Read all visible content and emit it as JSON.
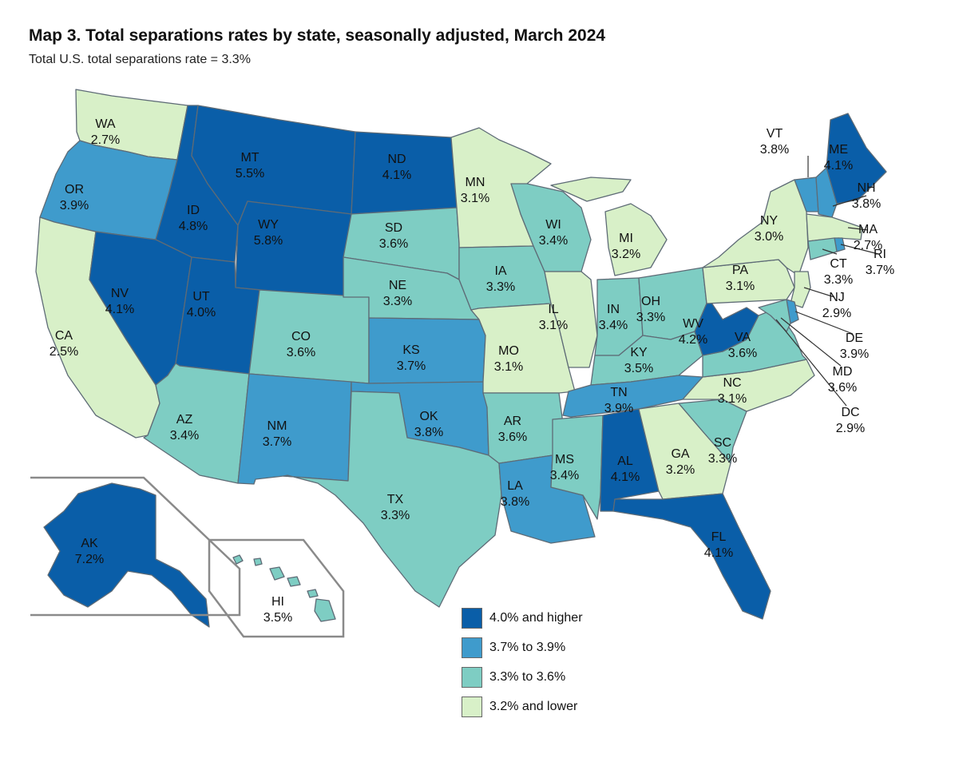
{
  "title": "Map 3. Total separations rates by state, seasonally adjusted, March 2024",
  "subtitle": "Total U.S. total separations rate = 3.3%",
  "colors": {
    "high": "#0a5ea8",
    "mid_high": "#3f9bcc",
    "mid_low": "#7ecdc3",
    "low": "#d8f0c8",
    "border": "#5e6b76"
  },
  "legend": [
    {
      "label": "4.0% and higher",
      "class": "high"
    },
    {
      "label": "3.7% to 3.9%",
      "class": "mid_high"
    },
    {
      "label": "3.3% to 3.6%",
      "class": "mid_low"
    },
    {
      "label": "3.2% and lower",
      "class": "low"
    }
  ],
  "states": {
    "WA": {
      "abbr": "WA",
      "rate": "2.7%",
      "class": "low"
    },
    "OR": {
      "abbr": "OR",
      "rate": "3.9%",
      "class": "mid_high"
    },
    "CA": {
      "abbr": "CA",
      "rate": "2.5%",
      "class": "low"
    },
    "ID": {
      "abbr": "ID",
      "rate": "4.8%",
      "class": "high"
    },
    "NV": {
      "abbr": "NV",
      "rate": "4.1%",
      "class": "high"
    },
    "MT": {
      "abbr": "MT",
      "rate": "5.5%",
      "class": "high"
    },
    "WY": {
      "abbr": "WY",
      "rate": "5.8%",
      "class": "high"
    },
    "UT": {
      "abbr": "UT",
      "rate": "4.0%",
      "class": "high"
    },
    "AZ": {
      "abbr": "AZ",
      "rate": "3.4%",
      "class": "mid_low"
    },
    "CO": {
      "abbr": "CO",
      "rate": "3.6%",
      "class": "mid_low"
    },
    "NM": {
      "abbr": "NM",
      "rate": "3.7%",
      "class": "mid_high"
    },
    "ND": {
      "abbr": "ND",
      "rate": "4.1%",
      "class": "high"
    },
    "SD": {
      "abbr": "SD",
      "rate": "3.6%",
      "class": "mid_low"
    },
    "NE": {
      "abbr": "NE",
      "rate": "3.3%",
      "class": "mid_low"
    },
    "KS": {
      "abbr": "KS",
      "rate": "3.7%",
      "class": "mid_high"
    },
    "OK": {
      "abbr": "OK",
      "rate": "3.8%",
      "class": "mid_high"
    },
    "TX": {
      "abbr": "TX",
      "rate": "3.3%",
      "class": "mid_low"
    },
    "MN": {
      "abbr": "MN",
      "rate": "3.1%",
      "class": "low"
    },
    "IA": {
      "abbr": "IA",
      "rate": "3.3%",
      "class": "mid_low"
    },
    "MO": {
      "abbr": "MO",
      "rate": "3.1%",
      "class": "low"
    },
    "AR": {
      "abbr": "AR",
      "rate": "3.6%",
      "class": "mid_low"
    },
    "LA": {
      "abbr": "LA",
      "rate": "3.8%",
      "class": "mid_high"
    },
    "WI": {
      "abbr": "WI",
      "rate": "3.4%",
      "class": "mid_low"
    },
    "IL": {
      "abbr": "IL",
      "rate": "3.1%",
      "class": "low"
    },
    "MI": {
      "abbr": "MI",
      "rate": "3.2%",
      "class": "low"
    },
    "IN": {
      "abbr": "IN",
      "rate": "3.4%",
      "class": "mid_low"
    },
    "OH": {
      "abbr": "OH",
      "rate": "3.3%",
      "class": "mid_low"
    },
    "KY": {
      "abbr": "KY",
      "rate": "3.5%",
      "class": "mid_low"
    },
    "TN": {
      "abbr": "TN",
      "rate": "3.9%",
      "class": "mid_high"
    },
    "MS": {
      "abbr": "MS",
      "rate": "3.4%",
      "class": "mid_low"
    },
    "AL": {
      "abbr": "AL",
      "rate": "4.1%",
      "class": "high"
    },
    "GA": {
      "abbr": "GA",
      "rate": "3.2%",
      "class": "low"
    },
    "FL": {
      "abbr": "FL",
      "rate": "4.1%",
      "class": "high"
    },
    "SC": {
      "abbr": "SC",
      "rate": "3.3%",
      "class": "mid_low"
    },
    "NC": {
      "abbr": "NC",
      "rate": "3.1%",
      "class": "low"
    },
    "VA": {
      "abbr": "VA",
      "rate": "3.6%",
      "class": "mid_low"
    },
    "WV": {
      "abbr": "WV",
      "rate": "4.2%",
      "class": "high"
    },
    "PA": {
      "abbr": "PA",
      "rate": "3.1%",
      "class": "low"
    },
    "NY": {
      "abbr": "NY",
      "rate": "3.0%",
      "class": "low"
    },
    "VT": {
      "abbr": "VT",
      "rate": "3.8%",
      "class": "mid_high"
    },
    "NH": {
      "abbr": "NH",
      "rate": "3.8%",
      "class": "mid_high"
    },
    "ME": {
      "abbr": "ME",
      "rate": "4.1%",
      "class": "high"
    },
    "MA": {
      "abbr": "MA",
      "rate": "2.7%",
      "class": "low"
    },
    "RI": {
      "abbr": "RI",
      "rate": "3.7%",
      "class": "mid_high"
    },
    "CT": {
      "abbr": "CT",
      "rate": "3.3%",
      "class": "mid_low"
    },
    "NJ": {
      "abbr": "NJ",
      "rate": "2.9%",
      "class": "low"
    },
    "DE": {
      "abbr": "DE",
      "rate": "3.9%",
      "class": "mid_high"
    },
    "MD": {
      "abbr": "MD",
      "rate": "3.6%",
      "class": "mid_low"
    },
    "DC": {
      "abbr": "DC",
      "rate": "2.9%",
      "class": "low"
    },
    "AK": {
      "abbr": "AK",
      "rate": "7.2%",
      "class": "high"
    },
    "HI": {
      "abbr": "HI",
      "rate": "3.5%",
      "class": "mid_low"
    }
  }
}
